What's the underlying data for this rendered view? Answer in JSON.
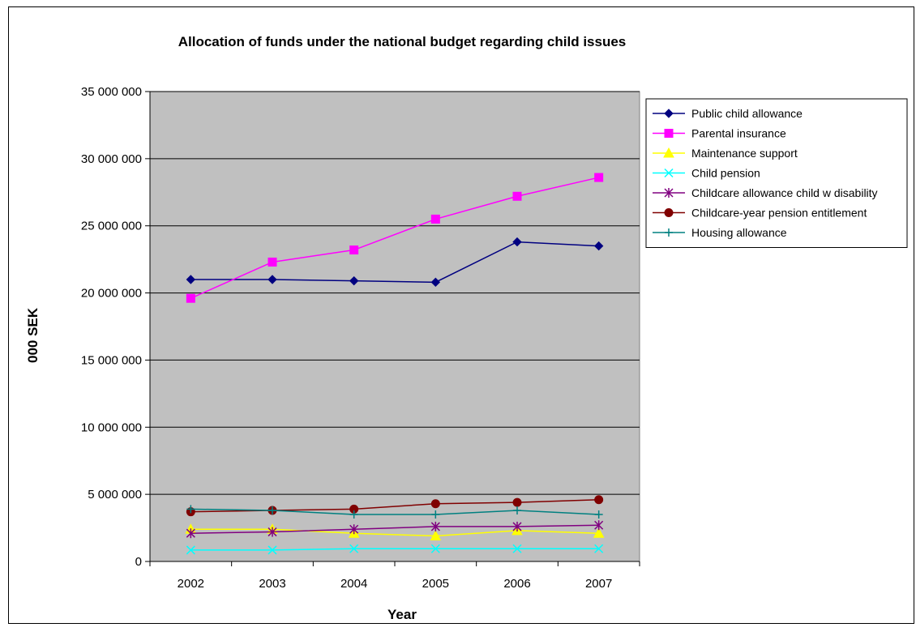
{
  "chart_data": {
    "type": "line",
    "title": "Allocation of funds under the national budget regarding child issues",
    "xlabel": "Year",
    "ylabel": "000 SEK",
    "ylim": [
      0,
      35000000
    ],
    "yticks": [
      0,
      5000000,
      10000000,
      15000000,
      20000000,
      25000000,
      30000000,
      35000000
    ],
    "ytick_labels": [
      "0",
      "5 000 000",
      "10 000 000",
      "15 000 000",
      "20 000 000",
      "25 000 000",
      "30 000 000",
      "35 000 000"
    ],
    "categories": [
      "2002",
      "2003",
      "2004",
      "2005",
      "2006",
      "2007"
    ],
    "grid": true,
    "plot_background": "#c0c0c0",
    "legend_position": "right",
    "series": [
      {
        "name": "Public child allowance",
        "color": "#000080",
        "marker": "diamond",
        "values": [
          21000000,
          21000000,
          20900000,
          20800000,
          23800000,
          23500000
        ]
      },
      {
        "name": "Parental insurance",
        "color": "#ff00ff",
        "marker": "square",
        "values": [
          19600000,
          22300000,
          23200000,
          25500000,
          27200000,
          28600000
        ]
      },
      {
        "name": "Maintenance support",
        "color": "#ffff00",
        "marker": "triangle",
        "values": [
          2400000,
          2400000,
          2100000,
          1900000,
          2300000,
          2100000
        ]
      },
      {
        "name": "Child pension",
        "color": "#00ffff",
        "marker": "x",
        "values": [
          850000,
          850000,
          950000,
          950000,
          950000,
          950000
        ]
      },
      {
        "name": "Childcare allowance child w disability",
        "color": "#800080",
        "marker": "star",
        "values": [
          2100000,
          2200000,
          2400000,
          2600000,
          2600000,
          2700000
        ]
      },
      {
        "name": "Childcare-year pension entitlement",
        "color": "#800000",
        "marker": "circle",
        "values": [
          3700000,
          3800000,
          3900000,
          4300000,
          4400000,
          4600000
        ]
      },
      {
        "name": "Housing allowance",
        "color": "#008080",
        "marker": "plus",
        "values": [
          3900000,
          3800000,
          3500000,
          3500000,
          3800000,
          3500000
        ]
      }
    ]
  }
}
